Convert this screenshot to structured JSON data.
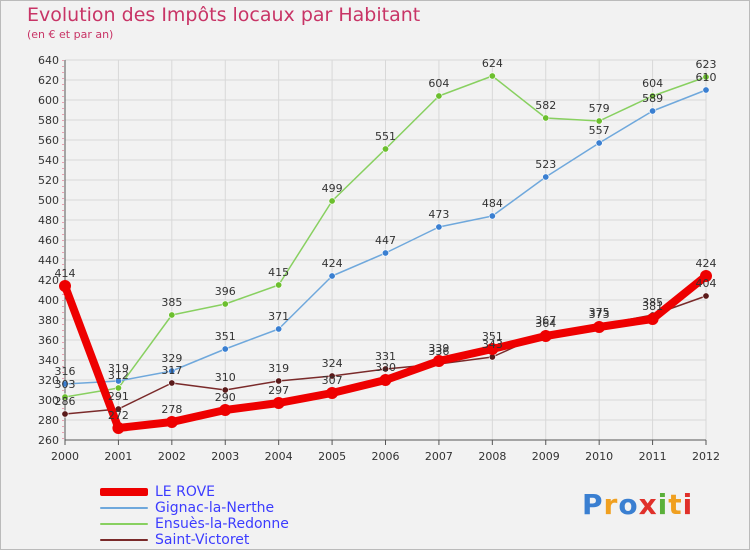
{
  "title": "Evolution des Impôts locaux par Habitant",
  "subtitle": "(en € et par an)",
  "logo": {
    "text": "Proxiti",
    "colors": [
      "#3a7fd1",
      "#f0a020",
      "#3a7fd1",
      "#e0302a",
      "#5ab03a",
      "#f0a020",
      "#e0302a"
    ]
  },
  "chart_data": {
    "type": "line",
    "title": "Evolution des Impôts locaux par Habitant",
    "subtitle": "(en € et par an)",
    "x": [
      2000,
      2001,
      2002,
      2003,
      2004,
      2005,
      2006,
      2007,
      2008,
      2009,
      2010,
      2011,
      2012
    ],
    "ylim": [
      260,
      640
    ],
    "yticks": [
      260,
      280,
      300,
      320,
      340,
      360,
      380,
      400,
      420,
      440,
      460,
      480,
      500,
      520,
      540,
      560,
      580,
      600,
      620,
      640
    ],
    "grid": true,
    "legend_position": "bottom-left",
    "series": [
      {
        "name": "Ensuès-la-Redonne",
        "color": "#88d060",
        "point_color": "#6cbf2e",
        "values": [
          303,
          312,
          385,
          396,
          415,
          499,
          551,
          604,
          624,
          582,
          579,
          604,
          623
        ]
      },
      {
        "name": "Gignac-la-Nerthe",
        "color": "#6fa8dc",
        "point_color": "#3a7fd1",
        "values": [
          316,
          319,
          329,
          351,
          371,
          424,
          447,
          473,
          484,
          523,
          557,
          589,
          610
        ]
      },
      {
        "name": "Saint-Victoret",
        "color": "#7a2a2a",
        "point_color": "#5a1a1a",
        "values": [
          286,
          291,
          317,
          310,
          319,
          324,
          331,
          336,
          343,
          367,
          375,
          385,
          404
        ]
      },
      {
        "name": "LE ROVE",
        "color": "#ee0000",
        "point_color": "#ee0000",
        "values": [
          414,
          272,
          278,
          290,
          297,
          307,
          320,
          339,
          351,
          364,
          373,
          381,
          424
        ]
      }
    ],
    "legend": [
      "LE ROVE",
      "Gignac-la-Nerthe",
      "Ensuès-la-Redonne",
      "Saint-Victoret"
    ]
  }
}
